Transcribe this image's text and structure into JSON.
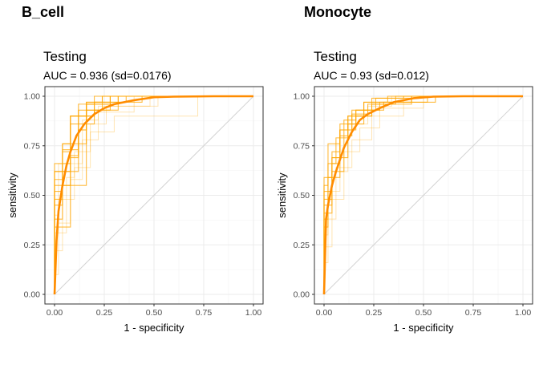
{
  "chart_data": [
    {
      "type": "line",
      "panel_tag": "B_cell",
      "title": "Testing",
      "subtitle": "AUC = 0.936 (sd=0.0176)",
      "xlabel": "1 - specificity",
      "ylabel": "sensitivity",
      "xlim": [
        0,
        1
      ],
      "ylim": [
        0,
        1
      ],
      "x_ticks": [
        "0.00",
        "0.25",
        "0.50",
        "0.75",
        "1.00"
      ],
      "y_ticks": [
        "0.00",
        "0.25",
        "0.50",
        "0.75",
        "1.00"
      ],
      "grid": true,
      "reference_line": {
        "x": [
          0,
          1
        ],
        "y": [
          0,
          1
        ],
        "color": "#d3d3d3"
      },
      "mean_curve": {
        "color": "#ff8c00",
        "x": [
          0.0,
          0.01,
          0.02,
          0.04,
          0.06,
          0.08,
          0.11,
          0.15,
          0.2,
          0.25,
          0.3,
          0.4,
          0.5,
          0.6,
          0.8,
          1.0
        ],
        "y": [
          0.0,
          0.27,
          0.42,
          0.55,
          0.65,
          0.72,
          0.8,
          0.86,
          0.91,
          0.94,
          0.96,
          0.98,
          0.995,
          0.998,
          1.0,
          1.0
        ]
      },
      "resample_color": "#ffa500",
      "resample_curves": [
        {
          "x": [
            0,
            0,
            0.04,
            0.04,
            0.08,
            0.08,
            0.12,
            0.12,
            0.16,
            0.16,
            0.28,
            0.28,
            1
          ],
          "y": [
            0,
            0.62,
            0.62,
            0.72,
            0.72,
            0.86,
            0.86,
            0.9,
            0.9,
            0.96,
            0.96,
            1,
            1
          ]
        },
        {
          "x": [
            0,
            0,
            0.04,
            0.04,
            0.08,
            0.08,
            0.12,
            0.12,
            0.24,
            0.24,
            1
          ],
          "y": [
            0,
            0.66,
            0.66,
            0.76,
            0.76,
            0.9,
            0.9,
            0.93,
            0.93,
            1,
            1
          ]
        },
        {
          "x": [
            0,
            0,
            0.08,
            0.08,
            0.12,
            0.12,
            0.16,
            0.16,
            0.32,
            0.32,
            1
          ],
          "y": [
            0,
            0.55,
            0.55,
            0.7,
            0.7,
            0.83,
            0.83,
            0.96,
            0.96,
            1,
            1
          ]
        },
        {
          "x": [
            0,
            0,
            0.04,
            0.04,
            0.12,
            0.12,
            0.2,
            0.2,
            0.36,
            0.36,
            1
          ],
          "y": [
            0,
            0.48,
            0.48,
            0.62,
            0.62,
            0.86,
            0.86,
            0.97,
            0.97,
            1,
            1
          ]
        },
        {
          "x": [
            0,
            0,
            0.04,
            0.04,
            0.08,
            0.08,
            0.12,
            0.12,
            0.2,
            0.2,
            1
          ],
          "y": [
            0,
            0.58,
            0.58,
            0.76,
            0.76,
            0.9,
            0.9,
            0.96,
            0.96,
            1,
            1
          ]
        },
        {
          "x": [
            0,
            0,
            0.04,
            0.04,
            0.08,
            0.08,
            0.16,
            0.16,
            0.28,
            0.28,
            1
          ],
          "y": [
            0,
            0.45,
            0.45,
            0.62,
            0.62,
            0.9,
            0.9,
            0.93,
            0.93,
            1,
            1
          ]
        },
        {
          "x": [
            0,
            0,
            0.08,
            0.08,
            0.12,
            0.12,
            0.16,
            0.16,
            0.24,
            0.24,
            1
          ],
          "y": [
            0,
            0.34,
            0.34,
            0.69,
            0.69,
            0.83,
            0.83,
            0.97,
            0.97,
            1,
            1
          ]
        },
        {
          "x": [
            0,
            0,
            0.04,
            0.04,
            0.16,
            0.16,
            0.2,
            0.2,
            0.44,
            0.44,
            1
          ],
          "y": [
            0,
            0.38,
            0.38,
            0.55,
            0.55,
            0.9,
            0.9,
            0.97,
            0.97,
            1,
            1
          ]
        },
        {
          "x": [
            0,
            0,
            0.04,
            0.04,
            0.08,
            0.08,
            0.16,
            0.16,
            0.28,
            0.28,
            1
          ],
          "y": [
            0,
            0.52,
            0.52,
            0.66,
            0.66,
            0.76,
            0.76,
            0.97,
            0.97,
            1,
            1
          ]
        },
        {
          "x": [
            0,
            0,
            0.04,
            0.04,
            0.12,
            0.12,
            0.2,
            0.2,
            0.32,
            0.32,
            1
          ],
          "y": [
            0,
            0.62,
            0.62,
            0.73,
            0.73,
            0.9,
            0.9,
            0.93,
            0.93,
            1,
            1
          ]
        }
      ],
      "resample_faint_curves": [
        {
          "x": [
            0,
            0,
            0.04,
            0.04,
            0.1,
            0.1,
            0.18,
            0.18,
            0.3,
            0.3,
            0.72,
            0.72,
            1
          ],
          "y": [
            0,
            0.22,
            0.22,
            0.48,
            0.48,
            0.64,
            0.64,
            0.82,
            0.82,
            0.9,
            0.9,
            1,
            1
          ]
        },
        {
          "x": [
            0,
            0,
            0.02,
            0.02,
            0.08,
            0.08,
            0.14,
            0.14,
            0.22,
            0.22,
            0.4,
            0.4,
            1
          ],
          "y": [
            0,
            0.1,
            0.1,
            0.36,
            0.36,
            0.58,
            0.58,
            0.78,
            0.78,
            0.92,
            0.92,
            1,
            1
          ]
        },
        {
          "x": [
            0,
            0,
            0.06,
            0.06,
            0.1,
            0.1,
            0.18,
            0.18,
            0.26,
            0.26,
            0.52,
            0.52,
            1
          ],
          "y": [
            0,
            0.31,
            0.31,
            0.59,
            0.59,
            0.72,
            0.72,
            0.86,
            0.86,
            0.95,
            0.95,
            1,
            1
          ]
        },
        {
          "x": [
            0,
            0,
            0.02,
            0.02,
            0.14,
            0.14,
            0.22,
            0.22,
            0.48,
            0.48,
            1
          ],
          "y": [
            0,
            0.4,
            0.4,
            0.66,
            0.66,
            0.88,
            0.88,
            0.95,
            0.95,
            1,
            1
          ]
        }
      ]
    },
    {
      "type": "line",
      "panel_tag": "Monocyte",
      "title": "Testing",
      "subtitle": "AUC = 0.93 (sd=0.012)",
      "xlabel": "1 - specificity",
      "ylabel": "sensitivity",
      "xlim": [
        0,
        1
      ],
      "ylim": [
        0,
        1
      ],
      "x_ticks": [
        "0.00",
        "0.25",
        "0.50",
        "0.75",
        "1.00"
      ],
      "y_ticks": [
        "0.00",
        "0.25",
        "0.50",
        "0.75",
        "1.00"
      ],
      "grid": true,
      "reference_line": {
        "x": [
          0,
          1
        ],
        "y": [
          0,
          1
        ],
        "color": "#d3d3d3"
      },
      "mean_curve": {
        "color": "#ff8c00",
        "x": [
          0.0,
          0.01,
          0.02,
          0.04,
          0.06,
          0.08,
          0.1,
          0.14,
          0.18,
          0.22,
          0.28,
          0.35,
          0.45,
          0.55,
          0.7,
          1.0
        ],
        "y": [
          0.0,
          0.38,
          0.45,
          0.55,
          0.62,
          0.68,
          0.74,
          0.82,
          0.88,
          0.91,
          0.94,
          0.97,
          0.99,
          0.998,
          1.0,
          1.0
        ]
      },
      "resample_color": "#ffa500",
      "resample_curves": [
        {
          "x": [
            0,
            0,
            0.04,
            0.04,
            0.08,
            0.08,
            0.12,
            0.12,
            0.2,
            0.2,
            0.32,
            0.32,
            1
          ],
          "y": [
            0,
            0.52,
            0.52,
            0.69,
            0.69,
            0.83,
            0.83,
            0.9,
            0.9,
            0.97,
            0.97,
            1,
            1
          ]
        },
        {
          "x": [
            0,
            0,
            0.04,
            0.04,
            0.08,
            0.08,
            0.16,
            0.16,
            0.28,
            0.28,
            0.52,
            0.52,
            1
          ],
          "y": [
            0,
            0.59,
            0.59,
            0.72,
            0.72,
            0.86,
            0.86,
            0.93,
            0.93,
            0.97,
            0.97,
            1,
            1
          ]
        },
        {
          "x": [
            0,
            0,
            0.02,
            0.02,
            0.06,
            0.06,
            0.12,
            0.12,
            0.24,
            0.24,
            0.44,
            0.44,
            1
          ],
          "y": [
            0,
            0.38,
            0.38,
            0.66,
            0.66,
            0.79,
            0.79,
            0.9,
            0.9,
            0.96,
            0.96,
            1,
            1
          ]
        },
        {
          "x": [
            0,
            0,
            0.04,
            0.04,
            0.1,
            0.1,
            0.16,
            0.16,
            0.26,
            0.26,
            0.4,
            0.4,
            1
          ],
          "y": [
            0,
            0.45,
            0.45,
            0.62,
            0.62,
            0.88,
            0.88,
            0.93,
            0.93,
            0.99,
            0.99,
            1,
            1
          ]
        },
        {
          "x": [
            0,
            0,
            0.02,
            0.02,
            0.08,
            0.08,
            0.14,
            0.14,
            0.22,
            0.22,
            0.36,
            0.36,
            1
          ],
          "y": [
            0,
            0.55,
            0.55,
            0.76,
            0.76,
            0.83,
            0.83,
            0.91,
            0.91,
            0.96,
            0.96,
            1,
            1
          ]
        },
        {
          "x": [
            0,
            0,
            0.04,
            0.04,
            0.12,
            0.12,
            0.2,
            0.2,
            0.3,
            0.3,
            0.56,
            0.56,
            1
          ],
          "y": [
            0,
            0.48,
            0.48,
            0.69,
            0.69,
            0.86,
            0.86,
            0.93,
            0.93,
            0.97,
            0.97,
            1,
            1
          ]
        },
        {
          "x": [
            0,
            0,
            0.02,
            0.02,
            0.08,
            0.08,
            0.16,
            0.16,
            0.24,
            0.24,
            0.48,
            0.48,
            1
          ],
          "y": [
            0,
            0.34,
            0.34,
            0.59,
            0.59,
            0.83,
            0.83,
            0.9,
            0.9,
            0.99,
            0.99,
            1,
            1
          ]
        },
        {
          "x": [
            0,
            0,
            0.04,
            0.04,
            0.08,
            0.08,
            0.14,
            0.14,
            0.2,
            0.2,
            0.44,
            0.44,
            1
          ],
          "y": [
            0,
            0.41,
            0.41,
            0.66,
            0.66,
            0.8,
            0.8,
            0.93,
            0.93,
            0.97,
            0.97,
            1,
            1
          ]
        }
      ],
      "resample_faint_curves": [
        {
          "x": [
            0,
            0,
            0.02,
            0.02,
            0.06,
            0.06,
            0.14,
            0.14,
            0.24,
            0.24,
            0.4,
            0.4,
            1
          ],
          "y": [
            0,
            0.16,
            0.16,
            0.38,
            0.38,
            0.64,
            0.64,
            0.78,
            0.78,
            0.9,
            0.9,
            1,
            1
          ]
        },
        {
          "x": [
            0,
            0,
            0.04,
            0.04,
            0.1,
            0.1,
            0.18,
            0.18,
            0.28,
            0.28,
            0.5,
            0.5,
            1
          ],
          "y": [
            0,
            0.24,
            0.24,
            0.48,
            0.48,
            0.72,
            0.72,
            0.84,
            0.84,
            0.94,
            0.94,
            1,
            1
          ]
        },
        {
          "x": [
            0,
            0,
            0.02,
            0.02,
            0.08,
            0.08,
            0.12,
            0.12,
            0.22,
            0.22,
            0.34,
            0.34,
            1
          ],
          "y": [
            0,
            0.3,
            0.3,
            0.52,
            0.52,
            0.62,
            0.62,
            0.86,
            0.86,
            0.95,
            0.95,
            1,
            1
          ]
        }
      ]
    }
  ]
}
